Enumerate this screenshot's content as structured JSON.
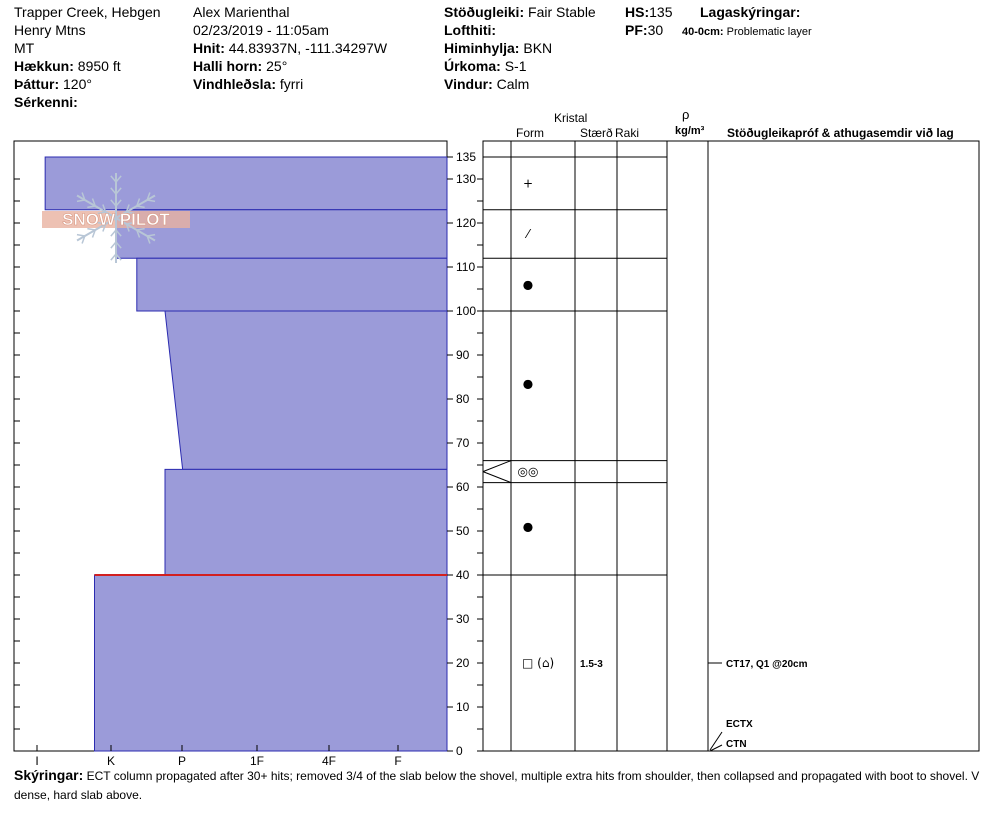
{
  "header": {
    "location": "Trapper Creek, Hebgen",
    "range": "Henry Mtns",
    "state": "MT",
    "elevation_label": "Hækkun:",
    "elevation_value": "8950 ft",
    "aspect_label": "Þáttur:",
    "aspect_value": "120°",
    "features_label": "Sérkenni:",
    "observer": "Alex Marienthal",
    "datetime": "02/23/2019 - 11:05am",
    "coords_label": "Hnit:",
    "coords_value": "44.83937N, -111.34297W",
    "slope_label": "Halli horn:",
    "slope_value": "25°",
    "wind_loading_label": "Vindhleðsla:",
    "wind_loading_value": "fyrri",
    "stability_label": "Stöðugleiki:",
    "stability_value": "Fair Stable",
    "air_temp_label": "Lofthiti:",
    "sky_label": "Himinhylja:",
    "sky_value": "BKN",
    "precip_label": "Úrkoma:",
    "precip_value": "S-1",
    "wind_label": "Vindur:",
    "wind_value": "Calm",
    "hs_label": "HS:",
    "hs_value": "135",
    "pf_label": "PF:",
    "pf_value": "30",
    "layer_notes_label": "Lagaskýringar:",
    "layer_note_depth": "40-0cm:",
    "layer_note_text": "Problematic layer"
  },
  "logo": {
    "text": "SNOW PILOT"
  },
  "columns": {
    "crystal": "Kristal",
    "form": "Form",
    "size": "Stærð",
    "moisture": "Raki",
    "rho": "ρ",
    "density_unit": "kg/m³",
    "tests": "Stöðugleikapróf & athugasemdir við lag"
  },
  "hardness_axis": [
    "I",
    "K",
    "P",
    "1F",
    "4F",
    "F"
  ],
  "depth_ticks": [
    "135",
    "130",
    "120",
    "110",
    "100",
    "90",
    "80",
    "70",
    "60",
    "50",
    "40",
    "30",
    "20",
    "10",
    "0"
  ],
  "profile": {
    "hs": 135,
    "layers": [
      {
        "top": 135,
        "bottom": 123,
        "hardness_top": 5.7,
        "hardness_bottom": 5.7
      },
      {
        "top": 123,
        "bottom": 112,
        "hardness_top": 4.7,
        "hardness_bottom": 4.7
      },
      {
        "top": 112,
        "bottom": 100,
        "hardness_top": 4.4,
        "hardness_bottom": 4.4
      },
      {
        "top": 100,
        "bottom": 64,
        "hardness_top": 4.0,
        "hardness_bottom": 3.75
      },
      {
        "top": 64,
        "bottom": 40,
        "hardness_top": 4.0,
        "hardness_bottom": 4.0
      },
      {
        "top": 40,
        "bottom": 0,
        "hardness_top": 5.0,
        "hardness_bottom": 5.0
      }
    ],
    "problem_layer_depth": 40
  },
  "grain_rows": [
    {
      "symbol": "+",
      "size": "",
      "moisture": ""
    },
    {
      "symbol": "⁄",
      "size": "",
      "moisture": ""
    },
    {
      "symbol": "●",
      "size": "",
      "moisture": ""
    },
    {
      "symbol": "●",
      "size": "",
      "moisture": ""
    },
    {
      "symbol": "◎◎",
      "size": "",
      "moisture": ""
    },
    {
      "symbol": "●",
      "size": "",
      "moisture": ""
    },
    {
      "symbol": "□ (⌂)",
      "size": "1.5-3",
      "moisture": ""
    }
  ],
  "tests": [
    {
      "label": "CT17, Q1 @20cm",
      "depth": 20
    },
    {
      "label": "ECTX",
      "depth": 0
    },
    {
      "label": "CTN",
      "depth": 0
    }
  ],
  "legend": {
    "label": "Skýringar:",
    "text": "ECT column propagated after 30+ hits; removed 3/4 of the slab below the shovel, multiple extra hits from shoulder, then collapsed and propagated with boot to shovel. V",
    "text2": "dense, hard slab above."
  },
  "colors": {
    "layer_fill": "#9b9bd9",
    "layer_stroke": "#2b2bb0",
    "problem_line": "#d22020",
    "logo": "#e8b2a0"
  }
}
